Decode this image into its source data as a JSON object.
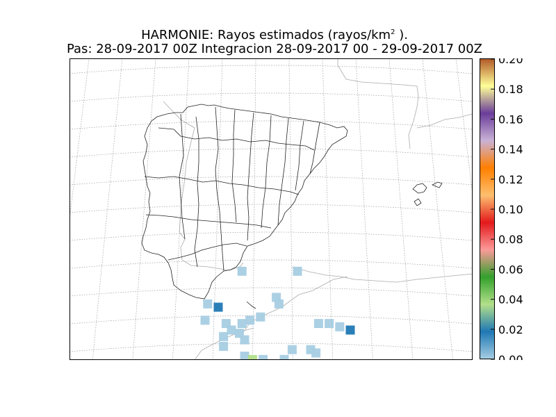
{
  "title": {
    "line1_prefix": "HARMONIE: Rayos estimados  (rayos/km",
    "line1_sup": "2",
    "line1_suffix": " ).",
    "line2": "Pas: 28-09-2017 00Z Integracion 28-09-2017 00 - 29-09-2017 00Z"
  },
  "colorbar": {
    "ticks": [
      "0.00",
      "0.02",
      "0.04",
      "0.06",
      "0.08",
      "0.10",
      "0.12",
      "0.14",
      "0.16",
      "0.18",
      "0.20"
    ],
    "range": [
      0,
      0.2
    ],
    "stops": [
      "#a6cee3",
      "#1f78b4",
      "#b2df8a",
      "#33a02c",
      "#fb9a99",
      "#e31a1c",
      "#fdbf6f",
      "#ff7f00",
      "#cab2d6",
      "#6a3d9a",
      "#ffff99",
      "#b15928"
    ]
  },
  "chart_data": {
    "type": "heatmap",
    "cells": [
      {
        "lon": -4.6,
        "lat": 37.3,
        "value": 0.005
      },
      {
        "lon": -2.5,
        "lat": 37.3,
        "value": 0.005
      },
      {
        "lon": -5.9,
        "lat": 36.3,
        "value": 0.005
      },
      {
        "lon": -5.5,
        "lat": 36.2,
        "value": 0.02
      },
      {
        "lon": -3.3,
        "lat": 36.5,
        "value": 0.005
      },
      {
        "lon": -3.2,
        "lat": 36.3,
        "value": 0.005
      },
      {
        "lon": -6.0,
        "lat": 35.8,
        "value": 0.005
      },
      {
        "lon": -5.2,
        "lat": 35.7,
        "value": 0.005
      },
      {
        "lon": -4.6,
        "lat": 35.7,
        "value": 0.005
      },
      {
        "lon": -4.3,
        "lat": 35.8,
        "value": 0.005
      },
      {
        "lon": -3.9,
        "lat": 35.9,
        "value": 0.005
      },
      {
        "lon": -5.0,
        "lat": 35.5,
        "value": 0.005
      },
      {
        "lon": -4.7,
        "lat": 35.4,
        "value": 0.005
      },
      {
        "lon": -5.3,
        "lat": 35.3,
        "value": 0.005
      },
      {
        "lon": -4.5,
        "lat": 35.2,
        "value": 0.005
      },
      {
        "lon": -1.7,
        "lat": 35.7,
        "value": 0.005
      },
      {
        "lon": -1.3,
        "lat": 35.7,
        "value": 0.005
      },
      {
        "lon": -0.9,
        "lat": 35.6,
        "value": 0.01
      },
      {
        "lon": -0.5,
        "lat": 35.5,
        "value": 0.02
      },
      {
        "lon": -5.3,
        "lat": 35.0,
        "value": 0.005
      },
      {
        "lon": -2.7,
        "lat": 34.9,
        "value": 0.005
      },
      {
        "lon": -2.0,
        "lat": 34.9,
        "value": 0.005
      },
      {
        "lon": -1.8,
        "lat": 34.8,
        "value": 0.005
      },
      {
        "lon": -4.5,
        "lat": 34.7,
        "value": 0.005
      },
      {
        "lon": -4.2,
        "lat": 34.6,
        "value": 0.045
      },
      {
        "lon": -3.8,
        "lat": 34.6,
        "value": 0.005
      },
      {
        "lon": -3.0,
        "lat": 34.6,
        "value": 0.005
      }
    ]
  }
}
